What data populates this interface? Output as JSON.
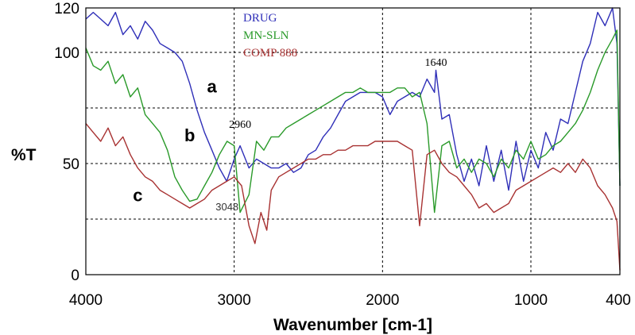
{
  "chart_data": {
    "type": "line",
    "xlabel": "Wavenumber [cm-1]",
    "ylabel": "%T",
    "xlim": [
      4000,
      400
    ],
    "ylim": [
      0,
      120
    ],
    "x_axis_reversed": true,
    "x_ticks": [
      {
        "value": 4000,
        "label": "4000"
      },
      {
        "value": 3000,
        "label": "3000"
      },
      {
        "value": 2000,
        "label": "2000"
      },
      {
        "value": 1000,
        "label": "1000"
      },
      {
        "value": 400,
        "label": "400"
      }
    ],
    "y_ticks": [
      {
        "value": 0,
        "label": "0"
      },
      {
        "value": 50,
        "label": "50"
      },
      {
        "value": 100,
        "label": "100"
      },
      {
        "value": 120,
        "label": "120"
      }
    ],
    "grid": true,
    "legend_position": "top-center",
    "series": [
      {
        "name": "DRUG",
        "color": "#2f2fb8",
        "curve_label": "a",
        "x": [
          4000,
          3950,
          3900,
          3850,
          3800,
          3750,
          3700,
          3650,
          3600,
          3550,
          3500,
          3450,
          3400,
          3350,
          3300,
          3250,
          3200,
          3150,
          3100,
          3050,
          3000,
          2960,
          2900,
          2850,
          2800,
          2750,
          2700,
          2650,
          2600,
          2550,
          2500,
          2450,
          2400,
          2350,
          2300,
          2250,
          2200,
          2150,
          2100,
          2050,
          2000,
          1950,
          1900,
          1850,
          1800,
          1750,
          1700,
          1650,
          1640,
          1600,
          1550,
          1500,
          1450,
          1400,
          1350,
          1300,
          1250,
          1200,
          1150,
          1100,
          1050,
          1000,
          950,
          900,
          850,
          800,
          750,
          700,
          650,
          600,
          550,
          500,
          450,
          420,
          400
        ],
        "y": [
          115,
          118,
          115,
          112,
          118,
          108,
          112,
          106,
          114,
          110,
          104,
          102,
          100,
          96,
          86,
          74,
          64,
          56,
          48,
          42,
          52,
          58,
          48,
          52,
          50,
          48,
          48,
          50,
          46,
          48,
          54,
          56,
          62,
          66,
          72,
          78,
          80,
          82,
          82,
          82,
          80,
          72,
          78,
          80,
          82,
          80,
          88,
          82,
          92,
          70,
          72,
          54,
          42,
          52,
          40,
          58,
          42,
          56,
          38,
          60,
          42,
          56,
          48,
          64,
          56,
          70,
          68,
          82,
          96,
          104,
          118,
          112,
          120,
          104,
          40
        ]
      },
      {
        "name": "MN-SLN",
        "color": "#2a9a2a",
        "curve_label": "b",
        "x": [
          4000,
          3950,
          3900,
          3850,
          3800,
          3750,
          3700,
          3650,
          3600,
          3550,
          3500,
          3450,
          3400,
          3350,
          3300,
          3250,
          3200,
          3150,
          3100,
          3048,
          3000,
          2960,
          2900,
          2850,
          2800,
          2750,
          2700,
          2650,
          2600,
          2550,
          2500,
          2450,
          2400,
          2350,
          2300,
          2250,
          2200,
          2150,
          2100,
          2050,
          2000,
          1950,
          1900,
          1850,
          1800,
          1750,
          1700,
          1650,
          1600,
          1550,
          1500,
          1450,
          1400,
          1350,
          1300,
          1250,
          1200,
          1150,
          1100,
          1050,
          1000,
          950,
          900,
          850,
          800,
          750,
          700,
          650,
          600,
          550,
          500,
          450,
          420,
          400
        ],
        "y": [
          102,
          94,
          92,
          96,
          86,
          90,
          80,
          84,
          72,
          68,
          64,
          56,
          44,
          38,
          33,
          34,
          40,
          46,
          54,
          60,
          58,
          28,
          36,
          60,
          56,
          62,
          62,
          66,
          68,
          70,
          72,
          74,
          76,
          78,
          80,
          82,
          82,
          84,
          82,
          82,
          82,
          82,
          84,
          84,
          80,
          82,
          68,
          28,
          58,
          60,
          48,
          52,
          46,
          52,
          50,
          44,
          52,
          48,
          56,
          52,
          60,
          52,
          54,
          58,
          60,
          64,
          68,
          74,
          82,
          92,
          100,
          106,
          110,
          40
        ]
      },
      {
        "name": "COMP 888",
        "color": "#a83232",
        "curve_label": "c",
        "x": [
          4000,
          3950,
          3900,
          3850,
          3800,
          3750,
          3700,
          3650,
          3600,
          3550,
          3500,
          3450,
          3400,
          3350,
          3300,
          3250,
          3200,
          3150,
          3100,
          3050,
          3000,
          2950,
          2900,
          2860,
          2820,
          2780,
          2750,
          2700,
          2650,
          2600,
          2550,
          2500,
          2450,
          2400,
          2350,
          2300,
          2250,
          2200,
          2150,
          2100,
          2050,
          2000,
          1950,
          1900,
          1850,
          1800,
          1750,
          1700,
          1650,
          1600,
          1550,
          1500,
          1450,
          1400,
          1350,
          1300,
          1250,
          1200,
          1150,
          1100,
          1050,
          1000,
          950,
          900,
          850,
          800,
          750,
          700,
          650,
          600,
          550,
          500,
          450,
          420,
          400
        ],
        "y": [
          68,
          64,
          60,
          66,
          58,
          62,
          54,
          48,
          44,
          42,
          38,
          36,
          34,
          32,
          30,
          32,
          34,
          38,
          40,
          42,
          44,
          40,
          22,
          14,
          28,
          20,
          38,
          44,
          46,
          48,
          50,
          52,
          52,
          54,
          54,
          56,
          56,
          58,
          58,
          58,
          60,
          60,
          60,
          60,
          58,
          56,
          22,
          54,
          56,
          50,
          46,
          44,
          40,
          36,
          30,
          32,
          28,
          30,
          32,
          38,
          40,
          42,
          44,
          46,
          48,
          46,
          50,
          46,
          52,
          48,
          40,
          36,
          30,
          24,
          2
        ]
      }
    ],
    "annotations": [
      {
        "text": "1640",
        "x": 1640,
        "y": 94
      },
      {
        "text": "2960",
        "x": 2960,
        "y": 66
      },
      {
        "text": "3048",
        "x": 3048,
        "y": 29
      }
    ]
  }
}
